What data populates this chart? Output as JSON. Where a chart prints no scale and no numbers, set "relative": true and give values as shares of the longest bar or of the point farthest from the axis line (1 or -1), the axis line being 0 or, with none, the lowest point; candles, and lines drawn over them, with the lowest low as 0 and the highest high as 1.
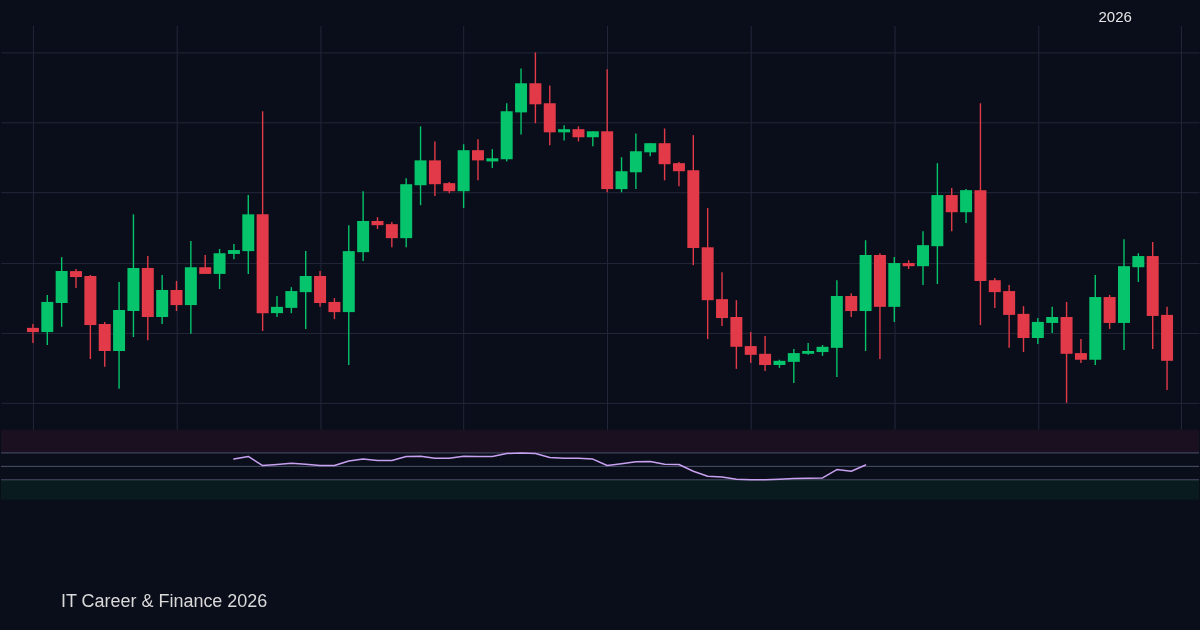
{
  "chart_data": [
    {
      "type": "candlestick",
      "categories": [
        null,
        null,
        null,
        null,
        null,
        null,
        null,
        null,
        null,
        null,
        null,
        null,
        null,
        null,
        null,
        null,
        null,
        null,
        null,
        null,
        null,
        null,
        null,
        null,
        null,
        null,
        null,
        null,
        null,
        null,
        null,
        null,
        null,
        null,
        null,
        null,
        null,
        null,
        null,
        null,
        null,
        null,
        null,
        null,
        null,
        null,
        null,
        null,
        null,
        null,
        null,
        null,
        null,
        null,
        null,
        null,
        null,
        null,
        null,
        null,
        null,
        null,
        null,
        null,
        null,
        null,
        null,
        null,
        null,
        null,
        null,
        null,
        null,
        null,
        null,
        null,
        null,
        null,
        null,
        null
      ],
      "relative": true,
      "ohlc": [
        [
          0.214,
          0.225,
          0.171,
          0.202
        ],
        [
          0.202,
          0.308,
          0.165,
          0.288
        ],
        [
          0.285,
          0.416,
          0.217,
          0.376
        ],
        [
          0.376,
          0.382,
          0.328,
          0.359
        ],
        [
          0.362,
          0.365,
          0.125,
          0.222
        ],
        [
          0.225,
          0.231,
          0.103,
          0.148
        ],
        [
          0.148,
          0.345,
          0.04,
          0.265
        ],
        [
          0.262,
          0.538,
          0.188,
          0.385
        ],
        [
          0.385,
          0.419,
          0.179,
          0.245
        ],
        [
          0.245,
          0.365,
          0.225,
          0.322
        ],
        [
          0.322,
          0.348,
          0.262,
          0.279
        ],
        [
          0.279,
          0.462,
          0.197,
          0.387
        ],
        [
          0.387,
          0.422,
          0.368,
          0.368
        ],
        [
          0.368,
          0.439,
          0.325,
          0.427
        ],
        [
          0.425,
          0.453,
          0.41,
          0.436
        ],
        [
          0.433,
          0.593,
          0.368,
          0.538
        ],
        [
          0.538,
          0.832,
          0.205,
          0.256
        ],
        [
          0.256,
          0.305,
          0.245,
          0.274
        ],
        [
          0.271,
          0.33,
          0.256,
          0.319
        ],
        [
          0.316,
          0.433,
          0.211,
          0.362
        ],
        [
          0.362,
          0.376,
          0.274,
          0.285
        ],
        [
          0.288,
          0.299,
          0.239,
          0.259
        ],
        [
          0.259,
          0.507,
          0.108,
          0.433
        ],
        [
          0.43,
          0.604,
          0.405,
          0.519
        ],
        [
          0.519,
          0.53,
          0.496,
          0.507
        ],
        [
          0.51,
          0.516,
          0.444,
          0.47
        ],
        [
          0.47,
          0.641,
          0.444,
          0.624
        ],
        [
          0.621,
          0.789,
          0.564,
          0.692
        ],
        [
          0.692,
          0.746,
          0.59,
          0.624
        ],
        [
          0.627,
          0.63,
          0.598,
          0.604
        ],
        [
          0.604,
          0.738,
          0.556,
          0.721
        ],
        [
          0.721,
          0.752,
          0.635,
          0.692
        ],
        [
          0.689,
          0.724,
          0.67,
          0.698
        ],
        [
          0.695,
          0.855,
          0.689,
          0.832
        ],
        [
          0.829,
          0.954,
          0.766,
          0.912
        ],
        [
          0.912,
          1,
          0.798,
          0.852
        ],
        [
          0.855,
          0.906,
          0.735,
          0.772
        ],
        [
          0.772,
          0.792,
          0.749,
          0.781
        ],
        [
          0.781,
          0.789,
          0.746,
          0.758
        ],
        [
          0.758,
          0.775,
          0.732,
          0.775
        ],
        [
          0.775,
          0.952,
          0.601,
          0.61
        ],
        [
          0.61,
          0.701,
          0.601,
          0.661
        ],
        [
          0.658,
          0.769,
          0.61,
          0.718
        ],
        [
          0.715,
          0.741,
          0.704,
          0.741
        ],
        [
          0.741,
          0.783,
          0.635,
          0.681
        ],
        [
          0.684,
          0.687,
          0.618,
          0.661
        ],
        [
          0.664,
          0.764,
          0.393,
          0.442
        ],
        [
          0.444,
          0.556,
          0.182,
          0.293
        ],
        [
          0.296,
          0.373,
          0.219,
          0.242
        ],
        [
          0.245,
          0.293,
          0.097,
          0.16
        ],
        [
          0.162,
          0.202,
          0.114,
          0.137
        ],
        [
          0.14,
          0.191,
          0.091,
          0.108
        ],
        [
          0.108,
          0.123,
          0.1,
          0.12
        ],
        [
          0.117,
          0.154,
          0.057,
          0.142
        ],
        [
          0.14,
          0.171,
          0.137,
          0.148
        ],
        [
          0.145,
          0.165,
          0.134,
          0.16
        ],
        [
          0.157,
          0.35,
          0.074,
          0.305
        ],
        [
          0.305,
          0.313,
          0.245,
          0.262
        ],
        [
          0.262,
          0.464,
          0.148,
          0.422
        ],
        [
          0.422,
          0.427,
          0.125,
          0.274
        ],
        [
          0.274,
          0.416,
          0.231,
          0.399
        ],
        [
          0.399,
          0.407,
          0.382,
          0.39
        ],
        [
          0.39,
          0.49,
          0.336,
          0.45
        ],
        [
          0.447,
          0.684,
          0.339,
          0.593
        ],
        [
          0.593,
          0.613,
          0.49,
          0.544
        ],
        [
          0.544,
          0.61,
          0.513,
          0.607
        ],
        [
          0.607,
          0.855,
          0.222,
          0.348
        ],
        [
          0.35,
          0.356,
          0.271,
          0.316
        ],
        [
          0.319,
          0.336,
          0.157,
          0.251
        ],
        [
          0.254,
          0.276,
          0.145,
          0.185
        ],
        [
          0.185,
          0.242,
          0.168,
          0.231
        ],
        [
          0.228,
          0.274,
          0.199,
          0.245
        ],
        [
          0.245,
          0.288,
          0,
          0.14
        ],
        [
          0.142,
          0.182,
          0.114,
          0.123
        ],
        [
          0.123,
          0.365,
          0.108,
          0.302
        ],
        [
          0.302,
          0.308,
          0.211,
          0.228
        ],
        [
          0.228,
          0.467,
          0.151,
          0.39
        ],
        [
          0.387,
          0.427,
          0.345,
          0.419
        ],
        [
          0.419,
          0.459,
          0.154,
          0.248
        ],
        [
          0.251,
          0.274,
          0.037,
          0.12
        ]
      ],
      "colors": [
        "#e23a48",
        "#05c46b",
        "#05c46b",
        "#e23a48",
        "#e23a48",
        "#e23a48",
        "#05c46b",
        "#05c46b",
        "#e23a48",
        "#05c46b",
        "#e23a48",
        "#05c46b",
        "#e23a48",
        "#05c46b",
        "#05c46b",
        "#05c46b",
        "#e23a48",
        "#05c46b",
        "#05c46b",
        "#05c46b",
        "#e23a48",
        "#e23a48",
        "#05c46b",
        "#05c46b",
        "#e23a48",
        "#e23a48",
        "#05c46b",
        "#05c46b",
        "#e23a48",
        "#e23a48",
        "#05c46b",
        "#e23a48",
        "#05c46b",
        "#05c46b",
        "#05c46b",
        "#e23a48",
        "#e23a48",
        "#05c46b",
        "#e23a48",
        "#05c46b",
        "#e23a48",
        "#05c46b",
        "#05c46b",
        "#05c46b",
        "#e23a48",
        "#e23a48",
        "#e23a48",
        "#e23a48",
        "#e23a48",
        "#e23a48",
        "#e23a48",
        "#e23a48",
        "#05c46b",
        "#05c46b",
        "#05c46b",
        "#05c46b",
        "#05c46b",
        "#e23a48",
        "#05c46b",
        "#e23a48",
        "#05c46b",
        "#e23a48",
        "#05c46b",
        "#05c46b",
        "#e23a48",
        "#05c46b",
        "#e23a48",
        "#e23a48",
        "#e23a48",
        "#e23a48",
        "#05c46b",
        "#05c46b",
        "#e23a48",
        "#e23a48",
        "#05c46b",
        "#e23a48",
        "#05c46b",
        "#05c46b",
        "#e23a48",
        "#e23a48"
      ],
      "grid": true,
      "tick_labels": false,
      "annotations": [
        "2026",
        "IT Career & Finance 2026"
      ]
    },
    {
      "type": "line",
      "categories": [
        null,
        null,
        null,
        null,
        null,
        null,
        null,
        null,
        null,
        null,
        null,
        null,
        null,
        null,
        null,
        null,
        null,
        null,
        null,
        null,
        null,
        null,
        null,
        null,
        null,
        null,
        null,
        null,
        null,
        null,
        null,
        null,
        null,
        null,
        null,
        null,
        null,
        null,
        null,
        null,
        null,
        null,
        null,
        null,
        null,
        null,
        null,
        null,
        null,
        null,
        null,
        null,
        null,
        null,
        null,
        null,
        null,
        null,
        null,
        null,
        null,
        null,
        null,
        null,
        null,
        null,
        null,
        null,
        null,
        null,
        null,
        null,
        null,
        null,
        null,
        null,
        null,
        null,
        null,
        null
      ],
      "relative": true,
      "tick_labels": false,
      "series": [
        {
          "color": "#c8a0f0",
          "values": [
            null,
            null,
            null,
            null,
            null,
            null,
            null,
            null,
            null,
            null,
            null,
            null,
            null,
            null,
            0.77,
            0.87,
            0.53,
            0.57,
            0.62,
            0.58,
            0.53,
            0.53,
            0.7,
            0.77,
            0.72,
            0.72,
            0.87,
            0.88,
            0.8,
            0.8,
            0.88,
            0.87,
            0.87,
            0.98,
            1,
            0.98,
            0.83,
            0.8,
            0.8,
            0.77,
            0.53,
            0.6,
            0.67,
            0.68,
            0.58,
            0.57,
            0.32,
            0.13,
            0.1,
            0.02,
            0,
            0,
            0.02,
            0.05,
            0.06,
            0.07,
            0.38,
            0.32,
            0.55,
            null,
            null,
            null,
            null,
            null,
            null,
            null,
            null,
            null,
            null,
            null,
            null,
            null,
            null,
            null,
            null,
            null,
            null,
            null,
            null,
            null
          ]
        }
      ],
      "ref_lines": [
        {
          "axis": "y",
          "value": 1,
          "color": "#4b5068"
        },
        {
          "axis": "y",
          "value": 0.5,
          "color": "#4b5068"
        },
        {
          "axis": "y",
          "value": 0,
          "color": "#4b5068"
        }
      ],
      "bands": [
        {
          "axis": "y",
          "from": 1,
          "to": 1.86,
          "color": "#1b1020"
        },
        {
          "axis": "y",
          "from": 0,
          "to": -0.74,
          "color": "#0a1b1f"
        }
      ]
    }
  ]
}
